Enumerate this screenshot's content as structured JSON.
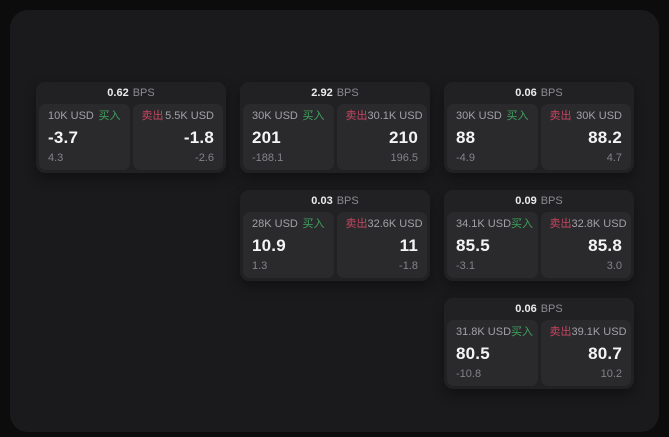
{
  "labels": {
    "bps_unit": "BPS",
    "buy": "买入",
    "sell": "卖出"
  },
  "colors": {
    "background": "#0c0c0d",
    "panel": "#1a1a1c",
    "card": "#212124",
    "quote_tile": "#2a2a2d",
    "buy_green": "#3da35e",
    "sell_red": "#c64560",
    "price_text": "#f4f4f5",
    "muted_text": "#838388"
  },
  "cards": [
    {
      "bps": "0.62",
      "buy": {
        "size": "10K USD",
        "price": "-3.7",
        "delta": "4.3"
      },
      "sell": {
        "size": "5.5K USD",
        "price": "-1.8",
        "delta": "-2.6"
      }
    },
    {
      "bps": "2.92",
      "buy": {
        "size": "30K USD",
        "price": "201",
        "delta": "-188.1"
      },
      "sell": {
        "size": "30.1K USD",
        "price": "210",
        "delta": "196.5"
      }
    },
    {
      "bps": "0.06",
      "buy": {
        "size": "30K USD",
        "price": "88",
        "delta": "-4.9"
      },
      "sell": {
        "size": "30K USD",
        "price": "88.2",
        "delta": "4.7"
      }
    },
    {
      "bps": "0.03",
      "buy": {
        "size": "28K USD",
        "price": "10.9",
        "delta": "1.3"
      },
      "sell": {
        "size": "32.6K USD",
        "price": "11",
        "delta": "-1.8"
      }
    },
    {
      "bps": "0.09",
      "buy": {
        "size": "34.1K USD",
        "price": "85.5",
        "delta": "-3.1"
      },
      "sell": {
        "size": "32.8K USD",
        "price": "85.8",
        "delta": "3.0"
      }
    },
    {
      "bps": "0.06",
      "buy": {
        "size": "31.8K USD",
        "price": "80.5",
        "delta": "-10.8"
      },
      "sell": {
        "size": "39.1K USD",
        "price": "80.7",
        "delta": "10.2"
      }
    }
  ]
}
